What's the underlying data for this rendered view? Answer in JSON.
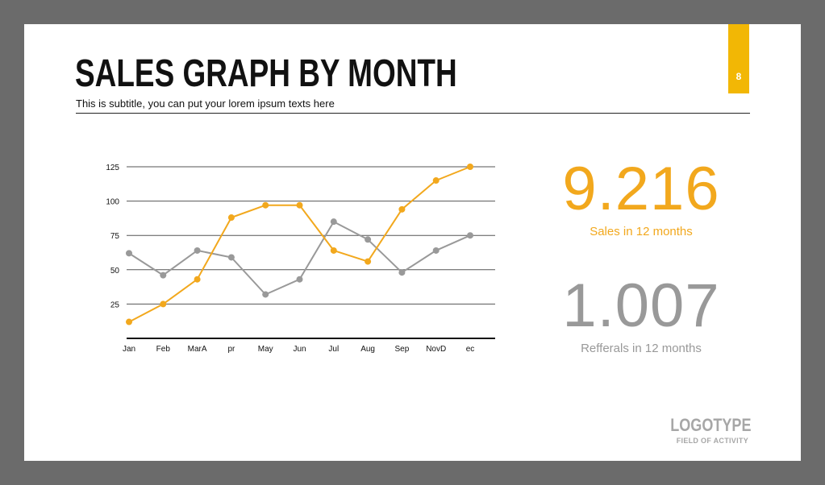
{
  "slide": {
    "page_number": "8",
    "title": "SALES GRAPH BY MONTH",
    "subtitle": "This is subtitle, you can put your lorem ipsum texts here"
  },
  "colors": {
    "accent": "#f2a81d",
    "secondary": "#999999",
    "tab": "#f2b705",
    "text": "#111111",
    "frame": "#6b6b6b"
  },
  "stats": {
    "sales_value": "9.216",
    "sales_label": "Sales in 12 months",
    "referrals_value": "1.007",
    "referrals_label": "Refferals in 12 months"
  },
  "logo": {
    "name": "LOGOTYPE",
    "tagline": "FIELD OF ACTIVITY"
  },
  "chart_data": {
    "type": "line",
    "categories": [
      "Jan",
      "Feb",
      "MarA",
      "pr",
      "May",
      "Jun",
      "Jul",
      "Aug",
      "Sep",
      "NovD",
      "ec"
    ],
    "y_ticks": [
      25,
      50,
      75,
      100,
      125
    ],
    "ylim": [
      0,
      125
    ],
    "grid": true,
    "series": [
      {
        "values": [
          12,
          25,
          43,
          88,
          97,
          97,
          64,
          56,
          94,
          115,
          125
        ],
        "color": "#f2a81d"
      },
      {
        "values": [
          62,
          46,
          64,
          59,
          32,
          43,
          85,
          72,
          48,
          64,
          75
        ],
        "color": "#999999"
      }
    ]
  }
}
